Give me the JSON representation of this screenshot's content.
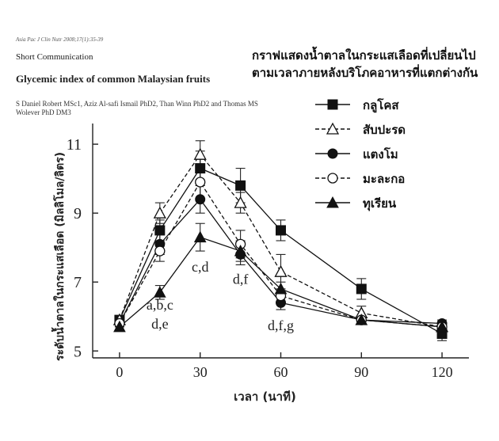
{
  "paper": {
    "journal_ref": "Asia Pac J Clin Nutr 2008;17(1):35-39",
    "section": "Short Communication",
    "title": "Glycemic index of common Malaysian fruits",
    "authors_line1": "S Daniel Robert MSc1, Aziz Al-safi Ismail PhD2, Than Winn PhD2 and Thomas MS",
    "authors_line2": "Wolever PhD DM3"
  },
  "chart_data": {
    "type": "line",
    "title_lines": [
      "กราฟแสดงน้ำตาลในกระแสเลือดที่เปลี่ยนไป",
      "ตามเวลาภายหลังบริโภคอาหารที่แตกต่างกัน"
    ],
    "xlabel": "เวลา (นาที)",
    "ylabel": "ระดับน้ำตาลในกระแสเลือด (มิลลิโมล/ลิตร)",
    "x": [
      0,
      15,
      30,
      45,
      60,
      90,
      120
    ],
    "x_ticks": [
      0,
      30,
      60,
      90,
      120
    ],
    "x_tick_labels": [
      "0",
      "30",
      "60",
      "90",
      "120"
    ],
    "xlim": [
      -10,
      130
    ],
    "y_ticks": [
      5,
      7,
      9,
      11
    ],
    "y_tick_labels": [
      "5",
      "7",
      "9",
      "11"
    ],
    "ylim": [
      4.8,
      11.6
    ],
    "grid": false,
    "legend_position": "top-right",
    "series": [
      {
        "name": "กลูโคส",
        "marker": "square-filled",
        "dash": "solid",
        "values": [
          5.9,
          8.5,
          10.3,
          9.8,
          8.5,
          6.8,
          5.5
        ],
        "errors": [
          0.1,
          0.3,
          0.5,
          0.5,
          0.3,
          0.3,
          0.2
        ]
      },
      {
        "name": "สับปะรด",
        "marker": "triangle-open",
        "dash": "dashed",
        "values": [
          5.9,
          9.0,
          10.7,
          9.3,
          7.3,
          6.1,
          5.7
        ],
        "errors": [
          0.1,
          0.3,
          0.4,
          0.3,
          0.5,
          0.2,
          0.1
        ]
      },
      {
        "name": "แตงโม",
        "marker": "circle-filled",
        "dash": "solid",
        "values": [
          5.8,
          8.1,
          9.4,
          7.8,
          6.4,
          5.9,
          5.8
        ],
        "errors": [
          0.1,
          0.3,
          0.4,
          0.3,
          0.2,
          0.1,
          0.1
        ]
      },
      {
        "name": "มะละกอ",
        "marker": "circle-open",
        "dash": "dashed",
        "values": [
          5.8,
          7.9,
          9.9,
          8.1,
          6.6,
          5.9,
          5.7
        ],
        "errors": [
          0.1,
          0.3,
          0.5,
          0.4,
          0.2,
          0.1,
          0.1
        ]
      },
      {
        "name": "ทุเรียน",
        "marker": "triangle-filled",
        "dash": "solid",
        "values": [
          5.7,
          6.7,
          8.3,
          7.9,
          6.8,
          5.9,
          5.7
        ],
        "errors": [
          0.1,
          0.2,
          0.4,
          0.3,
          0.2,
          0.1,
          0.1
        ]
      }
    ],
    "annotations": [
      {
        "text": "a,b,c",
        "x": 15,
        "y": 6.2
      },
      {
        "text": "d,e",
        "x": 15,
        "y": 5.65
      },
      {
        "text": "c,d",
        "x": 30,
        "y": 7.3
      },
      {
        "text": "d,f",
        "x": 45,
        "y": 6.95
      },
      {
        "text": "d,f,g",
        "x": 60,
        "y": 5.6
      }
    ]
  }
}
